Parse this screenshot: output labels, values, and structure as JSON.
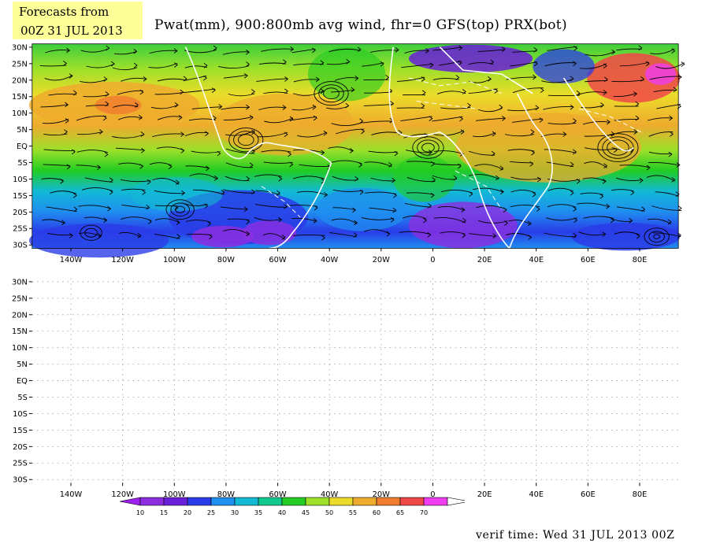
{
  "header": {
    "badge_line1": "Forecasts from",
    "badge_line2": "00Z 31 JUL 2013",
    "title": "Pwat(mm), 900:800mb avg wind, fhr=0 GFS(top) PRX(bot)"
  },
  "axes": {
    "lat_labels": [
      "30N",
      "25N",
      "20N",
      "15N",
      "10N",
      "5N",
      "EQ",
      "5S",
      "10S",
      "15S",
      "20S",
      "25S",
      "30S"
    ],
    "lon_labels": [
      "140W",
      "120W",
      "100W",
      "80W",
      "60W",
      "40W",
      "20W",
      "0",
      "20E",
      "40E",
      "60E",
      "80E"
    ]
  },
  "map_top": {
    "name": "GFS",
    "lat_range": [
      -31,
      31
    ],
    "lon_range": [
      -155,
      95
    ],
    "field": "precipitable water (mm) with 900:800mb avg wind streamlines"
  },
  "map_bottom": {
    "name": "PRX",
    "lat_range": [
      -31,
      31
    ],
    "lon_range": [
      -155,
      95
    ],
    "empty": true
  },
  "colorbar": {
    "labels": [
      "10",
      "15",
      "20",
      "25",
      "30",
      "35",
      "40",
      "45",
      "50",
      "55",
      "60",
      "65",
      "70"
    ],
    "colors": [
      "#8c2ee0",
      "#6a1fd8",
      "#2a3ce8",
      "#1f8ff0",
      "#12b9d4",
      "#10c98e",
      "#22cc22",
      "#9ce02a",
      "#ecdc2a",
      "#eeab2e",
      "#f07c2e",
      "#f04848",
      "#f03cf0"
    ],
    "under_color": "#a020f0",
    "over_color": "#ffffff"
  },
  "footer": {
    "verif": "verif time: Wed 31 JUL 2013 00Z"
  }
}
